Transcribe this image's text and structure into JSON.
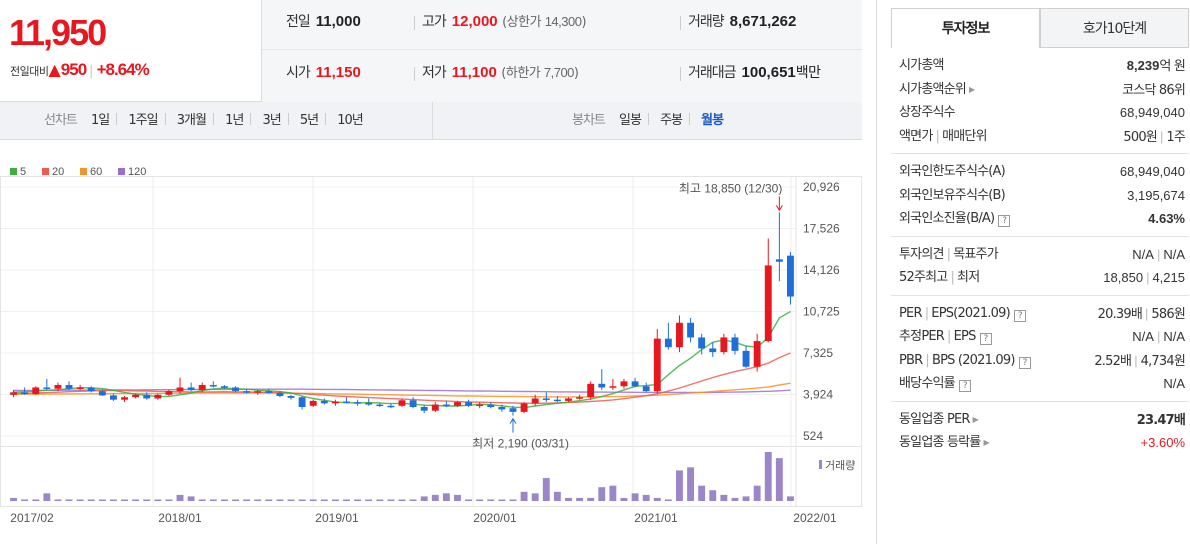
{
  "summary": {
    "current_price": "11,950",
    "change_label": "전일대비",
    "change_arrow": "▲",
    "change_value": "950",
    "change_pct": "+8.64%",
    "prev_close_label": "전일",
    "prev_close": "11,000",
    "high_label": "고가",
    "high": "12,000",
    "upper_limit_label": "(상한가",
    "upper_limit": "14,300",
    "upper_limit_close": ")",
    "volume_label": "거래량",
    "volume": "8,671,262",
    "open_label": "시가",
    "open": "11,150",
    "low_label": "저가",
    "low": "11,100",
    "lower_limit_label": "(하한가",
    "lower_limit": "7,700",
    "lower_limit_close": ")",
    "amount_label": "거래대금",
    "amount": "100,651",
    "amount_unit": "백만"
  },
  "toolbar": {
    "line_chart_label": "선차트",
    "line_periods": [
      "1일",
      "1주일",
      "3개월",
      "1년",
      "3년",
      "5년",
      "10년"
    ],
    "candle_chart_label": "봉차트",
    "candle_periods": [
      "일봉",
      "주봉",
      "월봉"
    ],
    "active_candle_period": "월봉"
  },
  "colors": {
    "up": "#e8171f",
    "down": "#1e6fd9",
    "ma5": "#3fae3f",
    "ma20": "#ef5a50",
    "ma60": "#f5932b",
    "ma120": "#9b6fd0",
    "volume": "#9b86c9"
  },
  "chart_data": {
    "type": "candlestick",
    "legend": [
      "5",
      "20",
      "60",
      "120"
    ],
    "y_ticks": [
      20926,
      17526,
      14126,
      10725,
      7325,
      3924,
      524
    ],
    "x_ticks": [
      "2017/02",
      "2018/01",
      "2019/01",
      "2020/01",
      "2021/01",
      "2022/01"
    ],
    "ylim": [
      524,
      20926
    ],
    "volume_label": "거래량",
    "max_annotation": "최고 18,850 (12/30)",
    "min_annotation": "최저 2,190 (03/31)",
    "candles": [
      {
        "o": 3900,
        "h": 4300,
        "l": 3700,
        "c": 4100
      },
      {
        "o": 4100,
        "h": 4500,
        "l": 3900,
        "c": 3950
      },
      {
        "o": 3950,
        "h": 4600,
        "l": 3900,
        "c": 4500
      },
      {
        "o": 4500,
        "h": 5200,
        "l": 4300,
        "c": 4400
      },
      {
        "o": 4400,
        "h": 4900,
        "l": 4200,
        "c": 4700
      },
      {
        "o": 4700,
        "h": 5000,
        "l": 4300,
        "c": 4400
      },
      {
        "o": 4400,
        "h": 4700,
        "l": 4300,
        "c": 4500
      },
      {
        "o": 4500,
        "h": 4600,
        "l": 4100,
        "c": 4200
      },
      {
        "o": 4200,
        "h": 4300,
        "l": 3800,
        "c": 3850
      },
      {
        "o": 3850,
        "h": 4000,
        "l": 3400,
        "c": 3500
      },
      {
        "o": 3500,
        "h": 3800,
        "l": 3300,
        "c": 3700
      },
      {
        "o": 3700,
        "h": 4000,
        "l": 3600,
        "c": 3900
      },
      {
        "o": 3900,
        "h": 4100,
        "l": 3500,
        "c": 3600
      },
      {
        "o": 3600,
        "h": 4000,
        "l": 3500,
        "c": 3900
      },
      {
        "o": 3900,
        "h": 4300,
        "l": 3800,
        "c": 4200
      },
      {
        "o": 4200,
        "h": 5300,
        "l": 4000,
        "c": 4500
      },
      {
        "o": 4500,
        "h": 4900,
        "l": 4200,
        "c": 4300
      },
      {
        "o": 4300,
        "h": 4900,
        "l": 4100,
        "c": 4700
      },
      {
        "o": 4700,
        "h": 5000,
        "l": 4500,
        "c": 4600
      },
      {
        "o": 4600,
        "h": 4700,
        "l": 4400,
        "c": 4500
      },
      {
        "o": 4500,
        "h": 4600,
        "l": 4100,
        "c": 4200
      },
      {
        "o": 4200,
        "h": 4400,
        "l": 4000,
        "c": 4100
      },
      {
        "o": 4100,
        "h": 4300,
        "l": 3900,
        "c": 4200
      },
      {
        "o": 4200,
        "h": 4400,
        "l": 4000,
        "c": 4050
      },
      {
        "o": 4050,
        "h": 4200,
        "l": 3700,
        "c": 3800
      },
      {
        "o": 3800,
        "h": 3900,
        "l": 3500,
        "c": 3650
      },
      {
        "o": 3700,
        "h": 3800,
        "l": 2700,
        "c": 2900
      },
      {
        "o": 3000,
        "h": 3500,
        "l": 2900,
        "c": 3400
      },
      {
        "o": 3400,
        "h": 3600,
        "l": 3100,
        "c": 3200
      },
      {
        "o": 3200,
        "h": 3500,
        "l": 3000,
        "c": 3350
      },
      {
        "o": 3350,
        "h": 3700,
        "l": 3200,
        "c": 3300
      },
      {
        "o": 3300,
        "h": 3500,
        "l": 3000,
        "c": 3250
      },
      {
        "o": 3250,
        "h": 3600,
        "l": 3000,
        "c": 3100
      },
      {
        "o": 3100,
        "h": 3200,
        "l": 2900,
        "c": 3000
      },
      {
        "o": 3000,
        "h": 3200,
        "l": 2800,
        "c": 2950
      },
      {
        "o": 3000,
        "h": 3600,
        "l": 2900,
        "c": 3450
      },
      {
        "o": 3450,
        "h": 3700,
        "l": 2800,
        "c": 2900
      },
      {
        "o": 2900,
        "h": 3100,
        "l": 2400,
        "c": 2600
      },
      {
        "o": 2600,
        "h": 3300,
        "l": 2500,
        "c": 3100
      },
      {
        "o": 3100,
        "h": 3400,
        "l": 2900,
        "c": 3000
      },
      {
        "o": 3000,
        "h": 3400,
        "l": 2900,
        "c": 3300
      },
      {
        "o": 3300,
        "h": 3500,
        "l": 2900,
        "c": 3000
      },
      {
        "o": 3000,
        "h": 3300,
        "l": 2800,
        "c": 3100
      },
      {
        "o": 3100,
        "h": 3300,
        "l": 2800,
        "c": 2900
      },
      {
        "o": 2900,
        "h": 3100,
        "l": 2500,
        "c": 2700
      },
      {
        "o": 2800,
        "h": 3000,
        "l": 2190,
        "c": 2500
      },
      {
        "o": 2500,
        "h": 3300,
        "l": 2400,
        "c": 3200
      },
      {
        "o": 3200,
        "h": 3900,
        "l": 3000,
        "c": 3600
      },
      {
        "o": 3600,
        "h": 4100,
        "l": 3300,
        "c": 3500
      },
      {
        "o": 3500,
        "h": 3800,
        "l": 3300,
        "c": 3400
      },
      {
        "o": 3400,
        "h": 3700,
        "l": 3300,
        "c": 3600
      },
      {
        "o": 3600,
        "h": 3900,
        "l": 3500,
        "c": 3700
      },
      {
        "o": 3700,
        "h": 5000,
        "l": 3500,
        "c": 4800
      },
      {
        "o": 4800,
        "h": 6000,
        "l": 4300,
        "c": 4500
      },
      {
        "o": 4500,
        "h": 5200,
        "l": 4300,
        "c": 4600
      },
      {
        "o": 4600,
        "h": 5200,
        "l": 4400,
        "c": 5000
      },
      {
        "o": 5000,
        "h": 5300,
        "l": 4500,
        "c": 4600
      },
      {
        "o": 4600,
        "h": 4900,
        "l": 4100,
        "c": 4200
      },
      {
        "o": 4200,
        "h": 9300,
        "l": 4000,
        "c": 8500
      },
      {
        "o": 8500,
        "h": 9800,
        "l": 7600,
        "c": 7800
      },
      {
        "o": 7800,
        "h": 10400,
        "l": 7400,
        "c": 9800
      },
      {
        "o": 9800,
        "h": 10200,
        "l": 8200,
        "c": 8600
      },
      {
        "o": 8600,
        "h": 8900,
        "l": 7200,
        "c": 7700
      },
      {
        "o": 7700,
        "h": 8200,
        "l": 7000,
        "c": 7400
      },
      {
        "o": 7400,
        "h": 8900,
        "l": 7200,
        "c": 8600
      },
      {
        "o": 8600,
        "h": 8900,
        "l": 7200,
        "c": 7500
      },
      {
        "o": 7500,
        "h": 7900,
        "l": 6100,
        "c": 6200
      },
      {
        "o": 6200,
        "h": 8900,
        "l": 5800,
        "c": 8300
      },
      {
        "o": 8300,
        "h": 16700,
        "l": 8200,
        "c": 14500
      },
      {
        "o": 15000,
        "h": 18850,
        "l": 13200,
        "c": 14800
      },
      {
        "o": 15300,
        "h": 15600,
        "l": 11300,
        "c": 11950
      }
    ],
    "ma5": [
      4100,
      4150,
      4200,
      4270,
      4320,
      4400,
      4480,
      4460,
      4410,
      4270,
      4100,
      3950,
      3850,
      3750,
      3770,
      3900,
      4050,
      4250,
      4380,
      4450,
      4400,
      4360,
      4280,
      4230,
      4160,
      4050,
      3800,
      3600,
      3450,
      3300,
      3250,
      3230,
      3260,
      3230,
      3180,
      3200,
      3130,
      3050,
      3020,
      2980,
      2980,
      3050,
      3120,
      3080,
      3000,
      2880,
      2850,
      2980,
      3100,
      3200,
      3300,
      3420,
      3550,
      3750,
      4000,
      4300,
      4600,
      4650,
      4750,
      5550,
      6300,
      6900,
      7600,
      8200,
      8400,
      8200,
      7900,
      7800,
      8600,
      10200,
      10725
    ],
    "ma20": [
      4000,
      4020,
      4050,
      4080,
      4110,
      4150,
      4190,
      4220,
      4240,
      4250,
      4240,
      4220,
      4200,
      4180,
      4160,
      4150,
      4140,
      4140,
      4140,
      4150,
      4140,
      4130,
      4110,
      4090,
      4070,
      4040,
      3990,
      3930,
      3870,
      3810,
      3760,
      3710,
      3670,
      3630,
      3590,
      3550,
      3510,
      3460,
      3420,
      3380,
      3340,
      3310,
      3290,
      3270,
      3250,
      3230,
      3210,
      3200,
      3210,
      3230,
      3260,
      3300,
      3350,
      3410,
      3480,
      3580,
      3700,
      3830,
      3980,
      4200,
      4460,
      4740,
      5030,
      5320,
      5570,
      5800,
      6000,
      6200,
      6500,
      6950,
      7325
    ],
    "ma60": [
      3950,
      3955,
      3960,
      3965,
      3970,
      3975,
      3980,
      3985,
      3990,
      3995,
      4000,
      4005,
      4010,
      4015,
      4020,
      4025,
      4030,
      4035,
      4040,
      4045,
      4050,
      4050,
      4050,
      4045,
      4040,
      4030,
      4020,
      4005,
      3990,
      3975,
      3960,
      3945,
      3930,
      3915,
      3900,
      3885,
      3870,
      3855,
      3840,
      3825,
      3810,
      3800,
      3790,
      3780,
      3770,
      3760,
      3750,
      3740,
      3735,
      3730,
      3730,
      3730,
      3735,
      3740,
      3750,
      3770,
      3800,
      3830,
      3870,
      3920,
      3980,
      4040,
      4100,
      4170,
      4240,
      4310,
      4380,
      4450,
      4550,
      4700,
      4850
    ],
    "ma120": [
      4250,
      4255,
      4260,
      4265,
      4270,
      4275,
      4280,
      4285,
      4290,
      4295,
      4300,
      4305,
      4310,
      4315,
      4320,
      4325,
      4330,
      4335,
      4340,
      4345,
      4350,
      4355,
      4360,
      4360,
      4360,
      4360,
      4355,
      4350,
      4345,
      4340,
      4330,
      4320,
      4310,
      4300,
      4290,
      4280,
      4270,
      4260,
      4250,
      4240,
      4230,
      4220,
      4210,
      4200,
      4190,
      4180,
      4170,
      4160,
      4150,
      4140,
      4135,
      4130,
      4125,
      4120,
      4115,
      4110,
      4105,
      4100,
      4100,
      4100,
      4100,
      4100,
      4100,
      4100,
      4110,
      4120,
      4140,
      4160,
      4190,
      4230,
      4280
    ],
    "volume": [
      2,
      1,
      1,
      5,
      1,
      1,
      1,
      0,
      0,
      0,
      0,
      0,
      0,
      0,
      0,
      4,
      3,
      1,
      1,
      0,
      0,
      0,
      0,
      0,
      0,
      0,
      0,
      0,
      0,
      0,
      0,
      0,
      0,
      0,
      0,
      0,
      1,
      3,
      4,
      5,
      4,
      1,
      1,
      1,
      0,
      0,
      6,
      5,
      15,
      6,
      2,
      2,
      2,
      9,
      10,
      2,
      5,
      4,
      2,
      1,
      20,
      22,
      10,
      7,
      4,
      2,
      3,
      10,
      32,
      28,
      3
    ]
  },
  "tabs": {
    "invest_info": "투자정보",
    "order_book": "호가10단계"
  },
  "info": {
    "market_cap_label": "시가총액",
    "market_cap": "8,239",
    "market_cap_unit": "억 원",
    "market_cap_rank_label": "시가총액순위",
    "market_cap_rank": "코스닥 86위",
    "listed_shares_label": "상장주식수",
    "listed_shares": "68,949,040",
    "par_value_label": "액면가",
    "trade_unit_label": "매매단위",
    "par_value": "500원",
    "trade_unit": "1주",
    "foreign_limit_label": "외국인한도주식수(A)",
    "foreign_limit": "68,949,040",
    "foreign_hold_label": "외국인보유주식수(B)",
    "foreign_hold": "3,195,674",
    "foreign_ratio_label": "외국인소진율(B/A)",
    "foreign_ratio": "4.63%",
    "opinion_label": "투자의견",
    "target_label": "목표주가",
    "opinion": "N/A",
    "target": "N/A",
    "high52_label": "52주최고",
    "low52_label": "최저",
    "high52": "18,850",
    "low52": "4,215",
    "per_label": "PER",
    "eps_label": "EPS(2021.09)",
    "per": "20.39배",
    "eps": "586원",
    "est_per_label": "추정PER",
    "est_eps_label": "EPS",
    "est_per": "N/A",
    "est_eps": "N/A",
    "pbr_label": "PBR",
    "bps_label": "BPS (2021.09)",
    "pbr": "2.52배",
    "bps": "4,734원",
    "dividend_label": "배당수익률",
    "dividend": "N/A",
    "sector_per_label": "동일업종 PER",
    "sector_per": "23.47배",
    "sector_change_label": "동일업종 등락률",
    "sector_change": "+3.60%"
  }
}
